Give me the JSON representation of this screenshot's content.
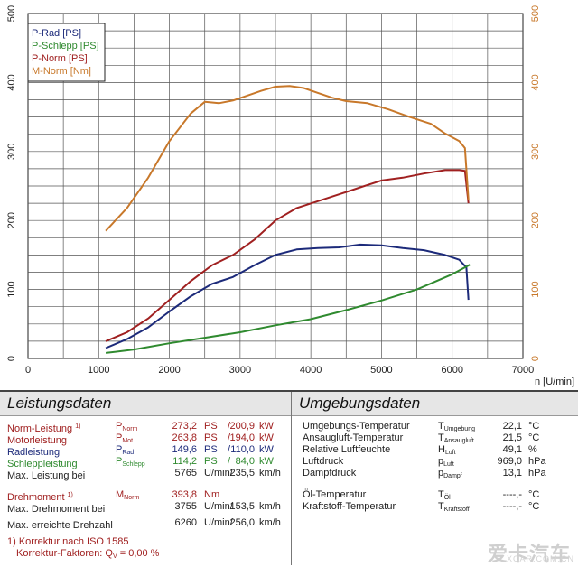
{
  "chart_data": {
    "type": "line",
    "xlabel": "n [U/min]",
    "xlim": [
      0,
      7000
    ],
    "ylim": [
      0,
      500
    ],
    "x_ticks": [
      "0",
      "1000",
      "2000",
      "3000",
      "4000",
      "5000",
      "6000",
      "7000"
    ],
    "y_ticks": [
      "0",
      "100",
      "200",
      "300",
      "400",
      "500"
    ],
    "grid": true,
    "legend_position": "top-left",
    "series": [
      {
        "name": "P-Rad [PS]",
        "color": "#1c2a7a",
        "points": [
          [
            1100,
            15
          ],
          [
            1400,
            28
          ],
          [
            1700,
            45
          ],
          [
            2000,
            68
          ],
          [
            2300,
            90
          ],
          [
            2600,
            108
          ],
          [
            2900,
            118
          ],
          [
            3200,
            135
          ],
          [
            3500,
            150
          ],
          [
            3800,
            158
          ],
          [
            4100,
            160
          ],
          [
            4400,
            161
          ],
          [
            4700,
            165
          ],
          [
            5000,
            164
          ],
          [
            5300,
            160
          ],
          [
            5600,
            157
          ],
          [
            5900,
            150
          ],
          [
            6100,
            143
          ],
          [
            6200,
            132
          ],
          [
            6230,
            85
          ]
        ]
      },
      {
        "name": "P-Schlepp [PS]",
        "color": "#2f8a2f",
        "points": [
          [
            1100,
            8
          ],
          [
            1500,
            13
          ],
          [
            2000,
            22
          ],
          [
            2500,
            30
          ],
          [
            3000,
            38
          ],
          [
            3500,
            48
          ],
          [
            4000,
            57
          ],
          [
            4500,
            70
          ],
          [
            5000,
            84
          ],
          [
            5500,
            100
          ],
          [
            6000,
            122
          ],
          [
            6250,
            136
          ]
        ]
      },
      {
        "name": "P-Norm [PS]",
        "color": "#a02020",
        "points": [
          [
            1100,
            25
          ],
          [
            1400,
            38
          ],
          [
            1700,
            58
          ],
          [
            2000,
            85
          ],
          [
            2300,
            112
          ],
          [
            2600,
            135
          ],
          [
            2900,
            150
          ],
          [
            3200,
            172
          ],
          [
            3500,
            200
          ],
          [
            3800,
            218
          ],
          [
            4100,
            228
          ],
          [
            4400,
            238
          ],
          [
            4700,
            248
          ],
          [
            5000,
            258
          ],
          [
            5300,
            262
          ],
          [
            5600,
            268
          ],
          [
            5900,
            273
          ],
          [
            6100,
            273
          ],
          [
            6180,
            272
          ],
          [
            6230,
            225
          ]
        ]
      },
      {
        "name": "M-Norm [Nm]",
        "color": "#c8782a",
        "points": [
          [
            1100,
            185
          ],
          [
            1400,
            218
          ],
          [
            1700,
            262
          ],
          [
            2000,
            315
          ],
          [
            2300,
            355
          ],
          [
            2500,
            372
          ],
          [
            2700,
            370
          ],
          [
            2900,
            374
          ],
          [
            3100,
            381
          ],
          [
            3300,
            388
          ],
          [
            3500,
            394
          ],
          [
            3700,
            395
          ],
          [
            3900,
            392
          ],
          [
            4100,
            385
          ],
          [
            4300,
            378
          ],
          [
            4500,
            373
          ],
          [
            4800,
            370
          ],
          [
            5100,
            361
          ],
          [
            5400,
            350
          ],
          [
            5700,
            340
          ],
          [
            5900,
            326
          ],
          [
            6100,
            315
          ],
          [
            6180,
            305
          ],
          [
            6230,
            230
          ]
        ]
      }
    ]
  },
  "panel_left": {
    "title": "Leistungsdaten",
    "rows": [
      {
        "label": "Norm-Leistung",
        "label_sup": "1)",
        "sym": "P",
        "sym_sub": "Norm",
        "v1": "273,2",
        "u1": "PS",
        "sep": "/",
        "v2": "200,9",
        "u2": "kW",
        "color": "#a02020"
      },
      {
        "label": "Motorleistung",
        "label_sup": "",
        "sym": "P",
        "sym_sub": "Mot",
        "v1": "263,8",
        "u1": "PS",
        "sep": "/",
        "v2": "194,0",
        "u2": "kW",
        "color": "#a02020"
      },
      {
        "label": "Radleistung",
        "label_sup": "",
        "sym": "P",
        "sym_sub": "Rad",
        "v1": "149,6",
        "u1": "PS",
        "sep": "/",
        "v2": "110,0",
        "u2": "kW",
        "color": "#1c2a7a"
      },
      {
        "label": "Schleppleistung",
        "label_sup": "",
        "sym": "P",
        "sym_sub": "Schlepp",
        "v1": "114,2",
        "u1": "PS",
        "sep": "/",
        "v2": "84,0",
        "u2": "kW",
        "color": "#2f8a2f"
      },
      {
        "label": "Max. Leistung bei",
        "label_sup": "",
        "sym": "",
        "sym_sub": "",
        "v1": "5765",
        "u1": "U/min/",
        "sep": "",
        "v2": "235,5",
        "u2": "km/h",
        "color": "#222222"
      },
      {
        "label": "Drehmoment",
        "label_sup": "1)",
        "sym": "M",
        "sym_sub": "Norm",
        "v1": "393,8",
        "u1": "Nm",
        "sep": "",
        "v2": "",
        "u2": "",
        "color": "#a02020"
      },
      {
        "label": "Max. Drehmoment bei",
        "label_sup": "",
        "sym": "",
        "sym_sub": "",
        "v1": "3755",
        "u1": "U/min/",
        "sep": "",
        "v2": "153,5",
        "u2": "km/h",
        "color": "#222222"
      },
      {
        "label": "Max. erreichte Drehzahl",
        "label_sup": "",
        "sym": "",
        "sym_sub": "",
        "v1": "6260",
        "u1": "U/min/",
        "sep": "",
        "v2": "256,0",
        "u2": "km/h",
        "color": "#222222"
      }
    ],
    "footnote1": "1) Korrektur nach ISO 1585",
    "footnote2_label": "Korrektur-Faktoren: Q",
    "footnote2_sub": "V",
    "footnote2_value": "=    0,00 %"
  },
  "panel_right": {
    "title": "Umgebungsdaten",
    "rows": [
      {
        "label": "Umgebungs-Temperatur",
        "sym": "T",
        "sym_sub": "Umgebung",
        "value": "22,1",
        "unit": "°C"
      },
      {
        "label": "Ansaugluft-Temperatur",
        "sym": "T",
        "sym_sub": "Ansaugluft",
        "value": "21,5",
        "unit": "°C"
      },
      {
        "label": "Relative Luftfeuchte",
        "sym": "H",
        "sym_sub": "Luft",
        "value": "49,1",
        "unit": "%"
      },
      {
        "label": "Luftdruck",
        "sym": "p",
        "sym_sub": "Luft",
        "value": "969,0",
        "unit": "hPa"
      },
      {
        "label": "Dampfdruck",
        "sym": "p",
        "sym_sub": "Dampf",
        "value": "13,1",
        "unit": "hPa"
      },
      {
        "label": "Öl-Temperatur",
        "sym": "T",
        "sym_sub": "Öl",
        "value": "----,-",
        "unit": "°C"
      },
      {
        "label": "Kraftstoff-Temperatur",
        "sym": "T",
        "sym_sub": "Kraftstoff",
        "value": "----,-",
        "unit": "°C"
      }
    ]
  },
  "watermark": {
    "text": "爱卡汽车",
    "sub": "XCAR.COM.CN"
  }
}
